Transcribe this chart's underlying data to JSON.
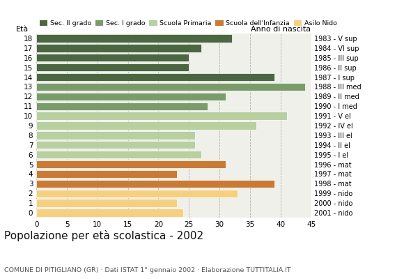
{
  "ages": [
    18,
    17,
    16,
    15,
    14,
    13,
    12,
    11,
    10,
    9,
    8,
    7,
    6,
    5,
    4,
    3,
    2,
    1,
    0
  ],
  "values": [
    32,
    27,
    25,
    25,
    39,
    44,
    31,
    28,
    41,
    36,
    26,
    26,
    27,
    31,
    23,
    39,
    33,
    23,
    24
  ],
  "years": [
    "1983 - V sup",
    "1984 - VI sup",
    "1985 - III sup",
    "1986 - II sup",
    "1987 - I sup",
    "1988 - III med",
    "1989 - II med",
    "1990 - I med",
    "1991 - V el",
    "1992 - IV el",
    "1993 - III el",
    "1994 - II el",
    "1995 - I el",
    "1996 - mat",
    "1997 - mat",
    "1998 - mat",
    "1999 - nido",
    "2000 - nido",
    "2001 - nido"
  ],
  "colors": [
    "#4a6741",
    "#4a6741",
    "#4a6741",
    "#4a6741",
    "#4a6741",
    "#7a9b6a",
    "#7a9b6a",
    "#7a9b6a",
    "#b8cfa0",
    "#b8cfa0",
    "#b8cfa0",
    "#b8cfa0",
    "#b8cfa0",
    "#c97a35",
    "#c97a35",
    "#c97a35",
    "#f5d080",
    "#f5d080",
    "#f5d080"
  ],
  "legend_labels": [
    "Sec. II grado",
    "Sec. I grado",
    "Scuola Primaria",
    "Scuola dell'Infanzia",
    "Asilo Nido"
  ],
  "legend_colors": [
    "#4a6741",
    "#7a9b6a",
    "#b8cfa0",
    "#c97a35",
    "#f5d080"
  ],
  "title": "Popolazione per età scolastica - 2002",
  "subtitle": "COMUNE DI PITIGLIANO (GR) · Dati ISTAT 1° gennaio 2002 · Elaborazione TUTTITALIA.IT",
  "xlabel_left": "Età",
  "xlabel_right": "Anno di nascita",
  "xlim": [
    0,
    45
  ],
  "xticks": [
    0,
    5,
    10,
    15,
    20,
    25,
    30,
    35,
    40,
    45
  ],
  "background_color": "#ffffff",
  "plot_bg_color": "#f0f0ea"
}
